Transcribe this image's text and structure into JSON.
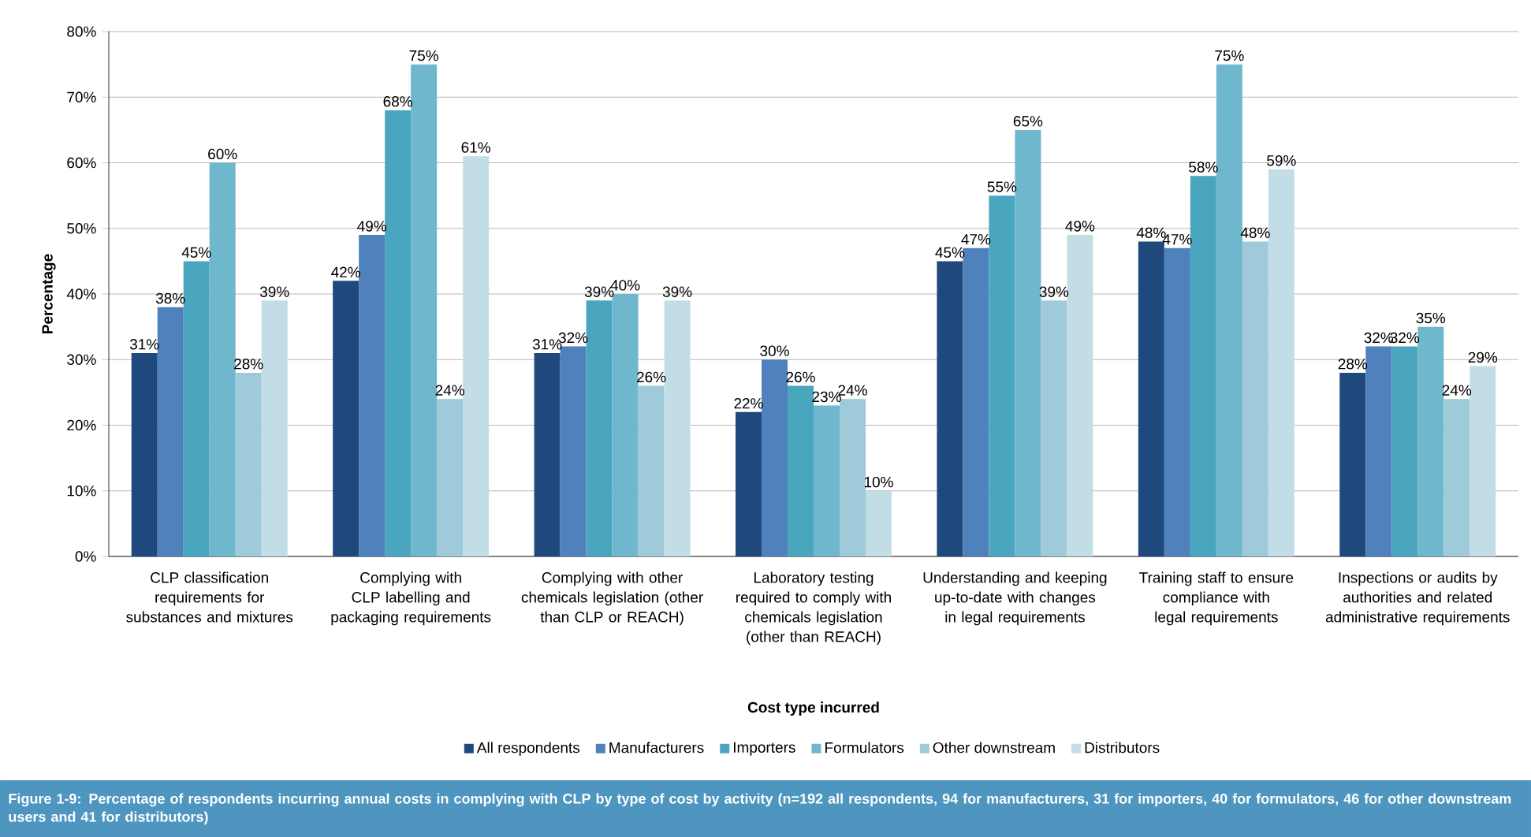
{
  "chart_data": {
    "type": "bar",
    "xlabel": "Cost type incurred",
    "ylabel": "Percentage",
    "categories": [
      "CLP classification requirements for substances and mixtures",
      "Complying with CLP labelling and packaging requirements",
      "Complying with other chemicals legislation (other than CLP or REACH)",
      "Laboratory testing required to comply with chemicals legislation (other than REACH)",
      "Understanding and keeping up-to-date with changes in legal requirements",
      "Training staff to ensure compliance with legal requirements",
      "Inspections or audits by authorities and related administrative requirements"
    ],
    "series": [
      {
        "name": "All respondents",
        "color": "#1f497d",
        "values": [
          31,
          42,
          31,
          22,
          45,
          48,
          28
        ],
        "value_labels": [
          "31%",
          "42%",
          "31%",
          "22%",
          "45%",
          "48%",
          "28%"
        ]
      },
      {
        "name": "Manufacturers",
        "color": "#4f81bd",
        "values": [
          38,
          49,
          32,
          30,
          47,
          47,
          32
        ],
        "value_labels": [
          "38%",
          "49%",
          "32%",
          "30%",
          "47%",
          "47%",
          "32%"
        ]
      },
      {
        "name": "Importers",
        "color": "#4aa6bf",
        "values": [
          45,
          68,
          39,
          26,
          55,
          58,
          32
        ],
        "value_labels": [
          "45%",
          "68%",
          "39%",
          "26%",
          "55%",
          "58%",
          "32%"
        ]
      },
      {
        "name": "Formulators",
        "color": "#6fb7cc",
        "values": [
          60,
          75,
          40,
          23,
          65,
          75,
          35
        ],
        "value_labels": [
          "60%",
          "75%",
          "40%",
          "23%",
          "65%",
          "75%",
          "35%"
        ]
      },
      {
        "name": "Other downstream",
        "color": "#9ecad9",
        "values": [
          28,
          24,
          26,
          24,
          39,
          48,
          24
        ],
        "value_labels": [
          "28%",
          "24%",
          "26%",
          "24%",
          "39%",
          "48%",
          "24%"
        ]
      },
      {
        "name": "Distributors",
        "color": "#c3dde6",
        "values": [
          39,
          61,
          39,
          10,
          49,
          59,
          29
        ],
        "value_labels": [
          "39%",
          "61%",
          "39%",
          "10%",
          "49%",
          "59%",
          "29%"
        ]
      }
    ],
    "ylim": [
      0,
      80
    ],
    "yticks": [
      {
        "value": 0,
        "label": "0%"
      },
      {
        "value": 10,
        "label": "10%"
      },
      {
        "value": 20,
        "label": "20%"
      },
      {
        "value": 30,
        "label": "30%"
      },
      {
        "value": 40,
        "label": "40%"
      },
      {
        "value": 50,
        "label": "50%"
      },
      {
        "value": 60,
        "label": "60%"
      },
      {
        "value": 70,
        "label": "70%"
      },
      {
        "value": 80,
        "label": "80%"
      }
    ],
    "grid": "y",
    "legend": "bottom",
    "annotations": [
      "Figure 1-9: Percentage of respondents incurring annual costs in complying with CLP by type of cost by activity (n=192 all respondents, 94 for manufacturers, 31 for importers, 40 for formulators, 46 for other downstream users and 41 for distributors)"
    ]
  }
}
